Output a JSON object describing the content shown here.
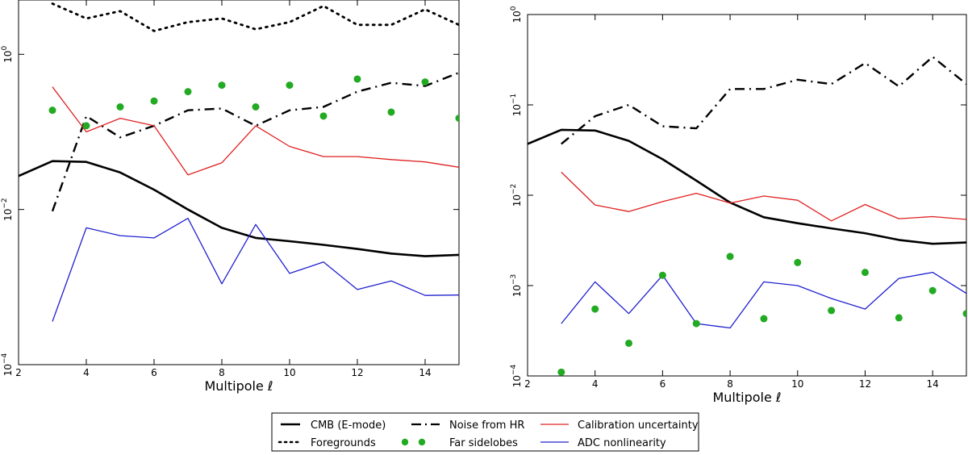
{
  "legend": {
    "items": [
      {
        "id": "cmb",
        "label": "CMB (E-mode)"
      },
      {
        "id": "noise",
        "label": "Noise from HR"
      },
      {
        "id": "calib",
        "label": "Calibration uncertainty"
      },
      {
        "id": "fg",
        "label": "Foregrounds"
      },
      {
        "id": "sidelobes",
        "label": "Far sidelobes"
      },
      {
        "id": "adc",
        "label": "ADC nonlinearity"
      }
    ]
  },
  "chart_data": [
    {
      "type": "line",
      "panel": "left",
      "xlabel": "Multipole ℓ",
      "ylabel": "",
      "xlim": [
        2,
        15
      ],
      "ylim_log10": [
        -4,
        0.7
      ],
      "yscale": "log",
      "x_ticks": [
        "2",
        "4",
        "6",
        "8",
        "10",
        "12",
        "14"
      ],
      "y_ticks": [
        {
          "base": "10",
          "exp": "0",
          "log10": 0
        },
        {
          "base": "10",
          "exp": "−2",
          "log10": -2
        },
        {
          "base": "10",
          "exp": "−4",
          "log10": -4
        }
      ],
      "series": [
        {
          "id": "fg",
          "name": "Foregrounds",
          "style": "dotted",
          "color": "#000000",
          "x": [
            3,
            4,
            5,
            6,
            7,
            8,
            9,
            10,
            11,
            12,
            13,
            14,
            15
          ],
          "values": [
            4.5,
            2.9,
            3.6,
            2.0,
            2.6,
            2.9,
            2.1,
            2.6,
            4.2,
            2.4,
            2.4,
            3.8,
            2.4
          ]
        },
        {
          "id": "noise",
          "name": "Noise from HR",
          "style": "dashdot",
          "color": "#000000",
          "x": [
            3,
            4,
            5,
            6,
            7,
            8,
            9,
            10,
            11,
            12,
            13,
            14,
            15
          ],
          "values": [
            0.0095,
            0.16,
            0.085,
            0.12,
            0.19,
            0.2,
            0.12,
            0.19,
            0.21,
            0.33,
            0.43,
            0.39,
            0.58
          ]
        },
        {
          "id": "calib",
          "name": "Calibration uncertainty",
          "style": "solid",
          "color": "#e02020",
          "x": [
            3,
            4,
            5,
            6,
            7,
            8,
            9,
            10,
            11,
            12,
            13,
            14,
            15
          ],
          "values": [
            0.38,
            0.1,
            0.15,
            0.12,
            0.028,
            0.04,
            0.12,
            0.065,
            0.048,
            0.048,
            0.044,
            0.041,
            0.035
          ]
        },
        {
          "id": "cmb",
          "name": "CMB (E-mode)",
          "style": "thick",
          "color": "#000000",
          "x": [
            2,
            3,
            4,
            5,
            6,
            7,
            8,
            9,
            10,
            11,
            12,
            13,
            14,
            15
          ],
          "values": [
            0.027,
            0.042,
            0.041,
            0.03,
            0.018,
            0.01,
            0.0058,
            0.0043,
            0.0039,
            0.0035,
            0.0031,
            0.0027,
            0.0025,
            0.0026
          ]
        },
        {
          "id": "adc",
          "name": "ADC nonlinearity",
          "style": "solid",
          "color": "#2020d0",
          "x": [
            3,
            4,
            5,
            6,
            7,
            8,
            9,
            10,
            11,
            12,
            13,
            14,
            15
          ],
          "values": [
            0.00036,
            0.0058,
            0.0046,
            0.0043,
            0.0077,
            0.0011,
            0.0064,
            0.0015,
            0.0021,
            0.00093,
            0.0012,
            0.00078,
            0.00079
          ]
        },
        {
          "id": "sidelobes",
          "name": "Far sidelobes",
          "style": "dots",
          "color": "#22aa22",
          "x": [
            3,
            4,
            5,
            6,
            7,
            8,
            9,
            10,
            11,
            12,
            13,
            14,
            15
          ],
          "values": [
            0.19,
            0.12,
            0.21,
            0.25,
            0.33,
            0.4,
            0.21,
            0.4,
            0.16,
            0.48,
            0.18,
            0.44,
            0.15
          ]
        }
      ]
    },
    {
      "type": "line",
      "panel": "right",
      "xlabel": "Multipole ℓ",
      "ylabel": "",
      "xlim": [
        2,
        15
      ],
      "ylim_log10": [
        -4,
        0
      ],
      "yscale": "log",
      "x_ticks": [
        "2",
        "4",
        "6",
        "8",
        "10",
        "12",
        "14"
      ],
      "y_ticks": [
        {
          "base": "10",
          "exp": "0",
          "log10": 0
        },
        {
          "base": "10",
          "exp": "−1",
          "log10": -1
        },
        {
          "base": "10",
          "exp": "−2",
          "log10": -2
        },
        {
          "base": "10",
          "exp": "−3",
          "log10": -3
        },
        {
          "base": "10",
          "exp": "−4",
          "log10": -4
        }
      ],
      "series": [
        {
          "id": "noise",
          "name": "Noise from HR",
          "style": "dashdot",
          "color": "#000000",
          "x": [
            3,
            4,
            5,
            6,
            7,
            8,
            9,
            10,
            11,
            12,
            13,
            14,
            15
          ],
          "values": [
            0.037,
            0.075,
            0.1,
            0.058,
            0.055,
            0.15,
            0.15,
            0.19,
            0.17,
            0.29,
            0.16,
            0.34,
            0.17
          ]
        },
        {
          "id": "cmb",
          "name": "CMB (E-mode)",
          "style": "thick",
          "color": "#000000",
          "x": [
            2,
            3,
            4,
            5,
            6,
            7,
            8,
            9,
            10,
            11,
            12,
            13,
            14,
            15
          ],
          "values": [
            0.037,
            0.053,
            0.052,
            0.04,
            0.025,
            0.0145,
            0.0083,
            0.0057,
            0.0049,
            0.0043,
            0.0038,
            0.0032,
            0.0029,
            0.003
          ]
        },
        {
          "id": "calib",
          "name": "Calibration uncertainty",
          "style": "solid",
          "color": "#e02020",
          "x": [
            3,
            4,
            5,
            6,
            7,
            8,
            9,
            10,
            11,
            12,
            13,
            14,
            15
          ],
          "values": [
            0.018,
            0.0078,
            0.0066,
            0.0085,
            0.0105,
            0.0082,
            0.0098,
            0.0088,
            0.0052,
            0.0079,
            0.0055,
            0.0058,
            0.0054
          ]
        },
        {
          "id": "adc",
          "name": "ADC nonlinearity",
          "style": "solid",
          "color": "#2020d0",
          "x": [
            3,
            4,
            5,
            6,
            7,
            8,
            9,
            10,
            11,
            12,
            13,
            14,
            15
          ],
          "values": [
            0.00038,
            0.0011,
            0.00049,
            0.0013,
            0.00038,
            0.00034,
            0.0011,
            0.001,
            0.00072,
            0.00055,
            0.0012,
            0.0014,
            0.00082
          ]
        },
        {
          "id": "sidelobes",
          "name": "Far sidelobes",
          "style": "dots",
          "color": "#22aa22",
          "x": [
            3,
            4,
            5,
            6,
            7,
            8,
            9,
            10,
            11,
            12,
            13,
            14,
            15
          ],
          "values": [
            0.00011,
            0.00055,
            0.00023,
            0.0013,
            0.00038,
            0.0021,
            0.00043,
            0.0018,
            0.00053,
            0.0014,
            0.00044,
            0.00088,
            0.00049
          ]
        }
      ]
    }
  ]
}
